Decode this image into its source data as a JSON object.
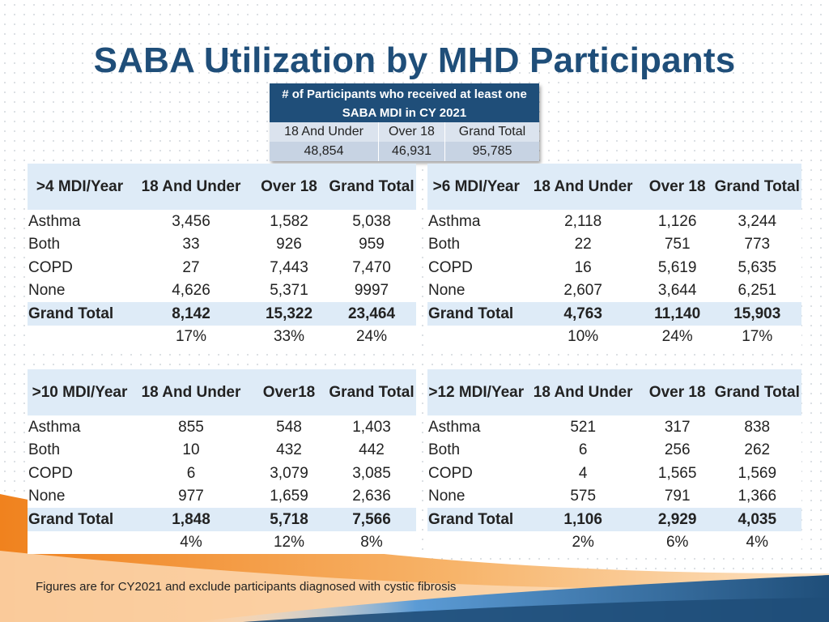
{
  "title": "SABA Utilization by MHD Participants",
  "summary": {
    "header": "# of Participants who received at least one SABA MDI in CY 2021",
    "columns": [
      "18 And Under",
      "Over 18",
      "Grand Total"
    ],
    "values": [
      "48,854",
      "46,931",
      "95,785"
    ]
  },
  "tables": [
    {
      "headers": [
        ">4 MDI/Year",
        "18 And Under",
        "Over 18",
        "Grand Total"
      ],
      "rows": [
        [
          "Asthma",
          "3,456",
          "1,582",
          "5,038"
        ],
        [
          "Both",
          "33",
          "926",
          "959"
        ],
        [
          "COPD",
          "27",
          "7,443",
          "7,470"
        ],
        [
          "None",
          "4,626",
          "5,371",
          "9997"
        ]
      ],
      "grand_total": [
        "Grand Total",
        "8,142",
        "15,322",
        "23,464"
      ],
      "percent": [
        "",
        "17%",
        "33%",
        "24%"
      ]
    },
    {
      "headers": [
        ">6 MDI/Year",
        "18 And Under",
        "Over 18",
        "Grand Total"
      ],
      "rows": [
        [
          "Asthma",
          "2,118",
          "1,126",
          "3,244"
        ],
        [
          "Both",
          "22",
          "751",
          "773"
        ],
        [
          "COPD",
          "16",
          "5,619",
          "5,635"
        ],
        [
          "None",
          "2,607",
          "3,644",
          "6,251"
        ]
      ],
      "grand_total": [
        "Grand Total",
        "4,763",
        "11,140",
        "15,903"
      ],
      "percent": [
        "",
        "10%",
        "24%",
        "17%"
      ]
    },
    {
      "headers": [
        ">10 MDI/Year",
        "18 And Under",
        "Over18",
        "Grand Total"
      ],
      "rows": [
        [
          "Asthma",
          "855",
          "548",
          "1,403"
        ],
        [
          "Both",
          "10",
          "432",
          "442"
        ],
        [
          "COPD",
          "6",
          "3,079",
          "3,085"
        ],
        [
          "None",
          "977",
          "1,659",
          "2,636"
        ]
      ],
      "grand_total": [
        "Grand Total",
        "1,848",
        "5,718",
        "7,566"
      ],
      "percent": [
        "",
        "4%",
        "12%",
        "8%"
      ]
    },
    {
      "headers": [
        ">12 MDI/Year",
        "18 And Under",
        "Over 18",
        "Grand Total"
      ],
      "rows": [
        [
          "Asthma",
          "521",
          "317",
          "838"
        ],
        [
          "Both",
          "6",
          "256",
          "262"
        ],
        [
          "COPD",
          "4",
          "1,565",
          "1,569"
        ],
        [
          "None",
          "575",
          "791",
          "1,366"
        ]
      ],
      "grand_total": [
        "Grand Total",
        "1,106",
        "2,929",
        "4,035"
      ],
      "percent": [
        "",
        "2%",
        "6%",
        "4%"
      ]
    }
  ],
  "footnote": "Figures are for CY2021 and exclude participants diagnosed with cystic fibrosis",
  "colors": {
    "title": "#1f4e79",
    "summary_header": "#1f4e79",
    "table_header_bg": "#deebf7",
    "swoosh_orange": "#f0821e",
    "swoosh_blue": "#2e75b6"
  }
}
